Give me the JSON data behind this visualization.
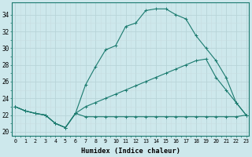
{
  "xlabel": "Humidex (Indice chaleur)",
  "bg_color": "#cde8ec",
  "grid_color_major": "#b8d4d8",
  "grid_color_minor": "#c8dde0",
  "line_color": "#1a7a6e",
  "xlim": [
    -0.3,
    23.3
  ],
  "ylim": [
    19.5,
    35.5
  ],
  "xticks": [
    0,
    1,
    2,
    3,
    4,
    5,
    6,
    7,
    8,
    9,
    10,
    11,
    12,
    13,
    14,
    15,
    16,
    17,
    18,
    19,
    20,
    21,
    22,
    23
  ],
  "yticks": [
    20,
    22,
    24,
    26,
    28,
    30,
    32,
    34
  ],
  "curve1_x": [
    0,
    1,
    2,
    3,
    4,
    5,
    6,
    7,
    8,
    9,
    10,
    11,
    12,
    13,
    14,
    15,
    16,
    17,
    18,
    19,
    20,
    21,
    22,
    23
  ],
  "curve1_y": [
    23,
    22.5,
    22.2,
    22,
    21,
    20.5,
    22.2,
    25.6,
    27.8,
    29.8,
    30.3,
    32.6,
    33.0,
    34.5,
    34.7,
    34.7,
    34,
    33.5,
    31.5,
    30.0,
    28.5,
    26.5,
    23.5,
    22.0
  ],
  "curve2_x": [
    0,
    1,
    2,
    3,
    4,
    5,
    6,
    7,
    8,
    9,
    10,
    11,
    12,
    13,
    14,
    15,
    16,
    17,
    18,
    19,
    20,
    21,
    22,
    23
  ],
  "curve2_y": [
    23,
    22.5,
    22.2,
    22,
    21,
    20.5,
    22.2,
    23.0,
    23.5,
    24.0,
    24.5,
    25.0,
    25.5,
    26.0,
    26.5,
    27.0,
    27.5,
    28.0,
    28.5,
    28.7,
    26.5,
    25.0,
    23.5,
    22.0
  ],
  "curve3_x": [
    0,
    1,
    2,
    3,
    4,
    5,
    6,
    7,
    8,
    9,
    10,
    11,
    12,
    13,
    14,
    15,
    16,
    17,
    18,
    19,
    20,
    21,
    22,
    23
  ],
  "curve3_y": [
    23,
    22.5,
    22.2,
    22,
    21,
    20.5,
    22.2,
    21.8,
    21.8,
    21.8,
    21.8,
    21.8,
    21.8,
    21.8,
    21.8,
    21.8,
    21.8,
    21.8,
    21.8,
    21.8,
    21.8,
    21.8,
    21.8,
    22.0
  ]
}
